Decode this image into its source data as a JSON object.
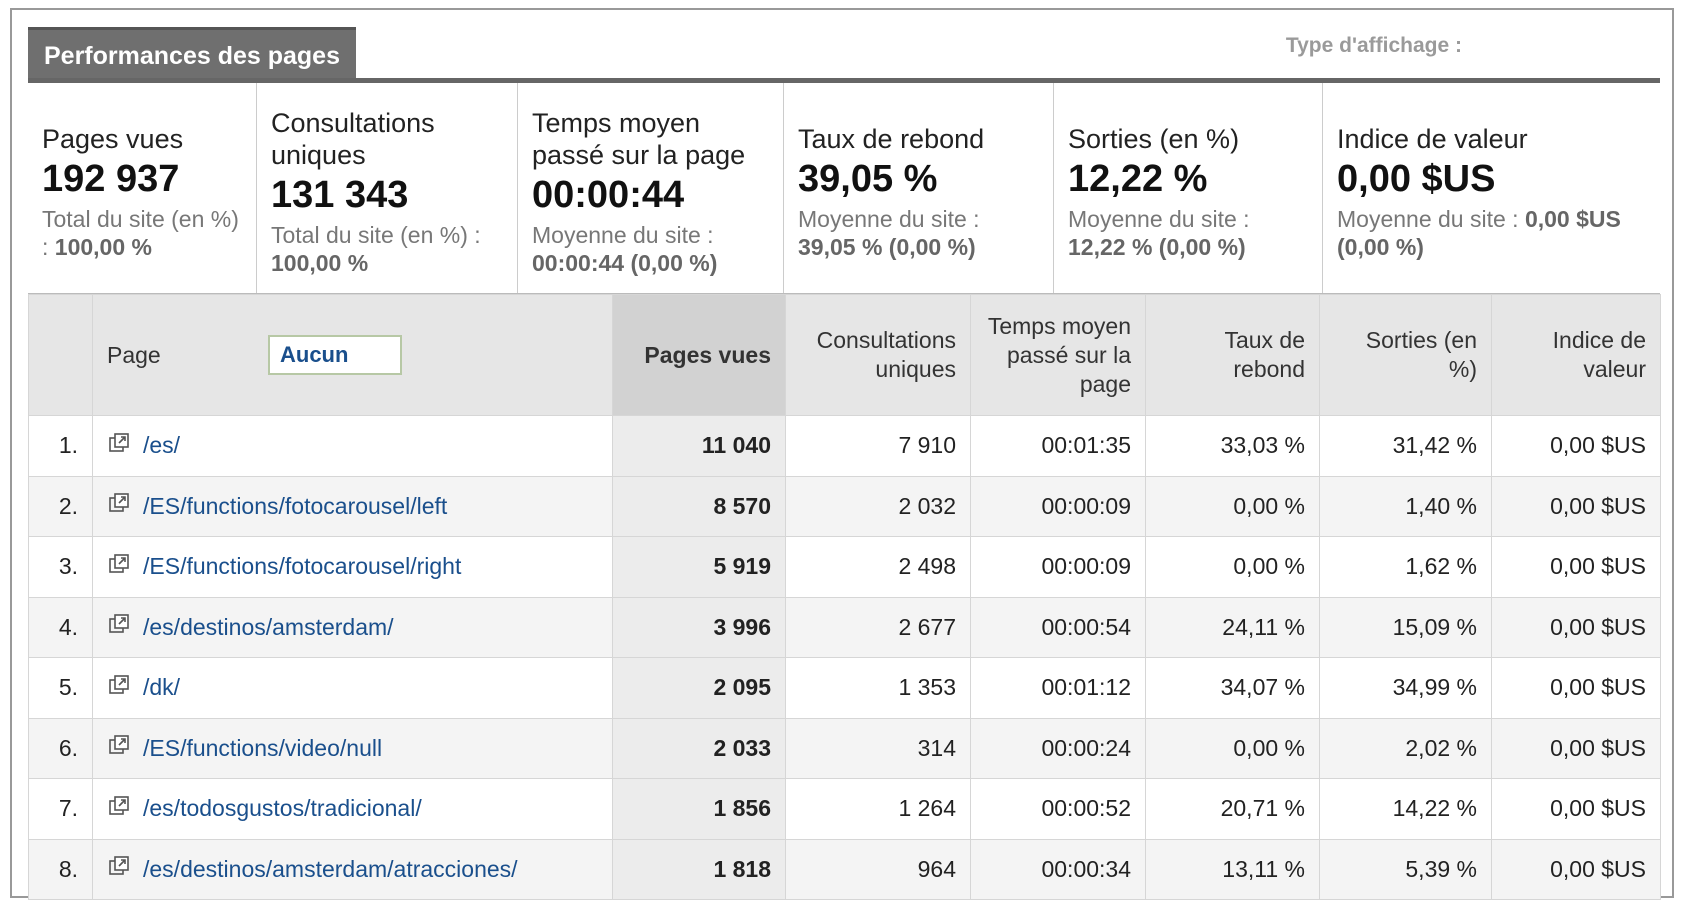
{
  "header": {
    "tab_label": "Performances des pages",
    "view_type_label": "Type d'affichage :"
  },
  "summary": [
    {
      "label": "Pages vues",
      "value": "192 937",
      "sub_label": "Total du site (en %) :",
      "sub_value": "100,00 %"
    },
    {
      "label": "Consultations uniques",
      "value": "131 343",
      "sub_label": "Total du site (en %) :",
      "sub_value": "100,00 %"
    },
    {
      "label": "Temps moyen passé sur la page",
      "value": "00:00:44",
      "sub_label": "Moyenne du site :",
      "sub_value": "00:00:44 (0,00 %)"
    },
    {
      "label": "Taux de rebond",
      "value": "39,05 %",
      "sub_label": "Moyenne du site :",
      "sub_value": "39,05 % (0,00 %)"
    },
    {
      "label": "Sorties (en %)",
      "value": "12,22 %",
      "sub_label": "Moyenne du site :",
      "sub_value": "12,22 % (0,00 %)"
    },
    {
      "label": "Indice de valeur",
      "value": "0,00 $US",
      "sub_label": "Moyenne du site :",
      "sub_value": "0,00 $US (0,00 %)"
    }
  ],
  "table": {
    "columns": {
      "page": "Page",
      "filter": "Aucun",
      "pages_vues": "Pages vues",
      "consultations": "Consultations uniques",
      "temps": "Temps moyen passé sur la page",
      "rebond": "Taux de rebond",
      "sorties": "Sorties (en %)",
      "indice": "Indice de valeur"
    },
    "rows": [
      {
        "idx": "1.",
        "page": "/es/",
        "pages_vues": "11 040",
        "consultations": "7 910",
        "temps": "00:01:35",
        "rebond": "33,03 %",
        "sorties": "31,42 %",
        "indice": "0,00 $US"
      },
      {
        "idx": "2.",
        "page": "/ES/functions/fotocarousel/left",
        "pages_vues": "8 570",
        "consultations": "2 032",
        "temps": "00:00:09",
        "rebond": "0,00 %",
        "sorties": "1,40 %",
        "indice": "0,00 $US"
      },
      {
        "idx": "3.",
        "page": "/ES/functions/fotocarousel/right",
        "pages_vues": "5 919",
        "consultations": "2 498",
        "temps": "00:00:09",
        "rebond": "0,00 %",
        "sorties": "1,62 %",
        "indice": "0,00 $US"
      },
      {
        "idx": "4.",
        "page": "/es/destinos/amsterdam/",
        "pages_vues": "3 996",
        "consultations": "2 677",
        "temps": "00:00:54",
        "rebond": "24,11 %",
        "sorties": "15,09 %",
        "indice": "0,00 $US"
      },
      {
        "idx": "5.",
        "page": "/dk/",
        "pages_vues": "2 095",
        "consultations": "1 353",
        "temps": "00:01:12",
        "rebond": "34,07 %",
        "sorties": "34,99 %",
        "indice": "0,00 $US"
      },
      {
        "idx": "6.",
        "page": "/ES/functions/video/null",
        "pages_vues": "2 033",
        "consultations": "314",
        "temps": "00:00:24",
        "rebond": "0,00 %",
        "sorties": "2,02 %",
        "indice": "0,00 $US"
      },
      {
        "idx": "7.",
        "page": "/es/todosgustos/tradicional/",
        "pages_vues": "1 856",
        "consultations": "1 264",
        "temps": "00:00:52",
        "rebond": "20,71 %",
        "sorties": "14,22 %",
        "indice": "0,00 $US"
      },
      {
        "idx": "8.",
        "page": "/es/destinos/amsterdam/atracciones/",
        "pages_vues": "1 818",
        "consultations": "964",
        "temps": "00:00:34",
        "rebond": "13,11 %",
        "sorties": "5,39 %",
        "indice": "0,00 $US"
      }
    ]
  },
  "icons": {
    "row_link": "external-link-icon"
  },
  "colors": {
    "tab_bg": "#6f6f6f",
    "link": "#1a4f8c",
    "highlight_col": "#d2d2d2"
  }
}
